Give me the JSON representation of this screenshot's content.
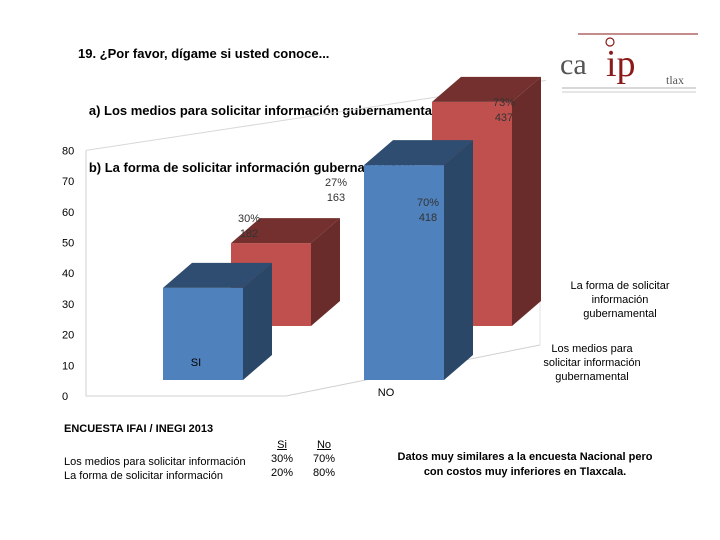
{
  "title": {
    "line1": "19. ¿Por favor, dígame si usted conoce...",
    "line2": "   a) Los medios para solicitar información gubernamental?",
    "line3": "   b) La forma de solicitar información gubernamental?"
  },
  "logo": {
    "text_ca": "ca",
    "text_ip": "ip",
    "text_tlax": "tlax",
    "colors": {
      "ca": "#555555",
      "ip": "#8b1a1a",
      "line": "#8b1a1a"
    }
  },
  "chart_data": {
    "type": "bar",
    "style": "3d-clustered",
    "y_ticks": [
      "0",
      "10",
      "20",
      "30",
      "40",
      "50",
      "60",
      "70",
      "80"
    ],
    "ylim": [
      0,
      80
    ],
    "categories": [
      "SI",
      "NO"
    ],
    "series": [
      {
        "name": "Los medios para solicitar información gubernamental",
        "color": "#4f81bd",
        "values": [
          30,
          70
        ],
        "labels": [
          [
            "30%",
            "182"
          ],
          [
            "70%",
            "418"
          ]
        ]
      },
      {
        "name": "La forma de solicitar información gubernamental",
        "color": "#c0504d",
        "values": [
          27,
          73
        ],
        "labels": [
          [
            "27%",
            "163"
          ],
          [
            "73%",
            "437"
          ]
        ]
      }
    ]
  },
  "footer": {
    "survey": "ENCUESTA IFAI / INEGI 2013",
    "rows": [
      "Los medios para solicitar información",
      "La forma de solicitar información"
    ],
    "col_si": {
      "header": "Si",
      "values": [
        "30%",
        "20%"
      ]
    },
    "col_no": {
      "header": "No",
      "values": [
        "70%",
        "80%"
      ]
    },
    "note_line1": "Datos muy similares a la encuesta Nacional pero",
    "note_line2": "con costos muy inferiores en Tlaxcala."
  }
}
